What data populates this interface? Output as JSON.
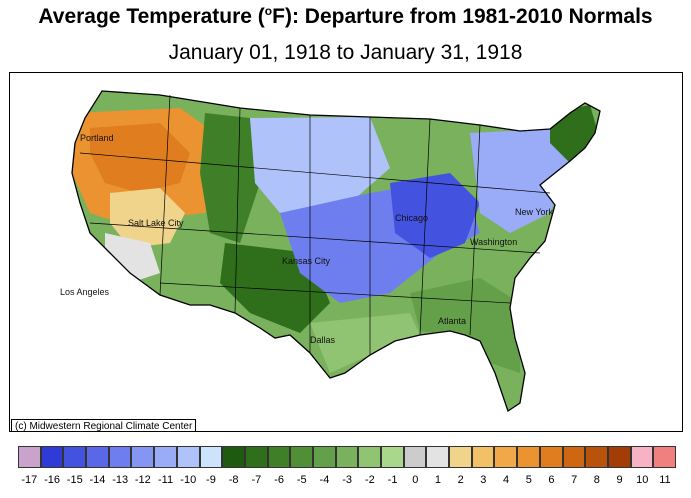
{
  "title_prefix": "Average Temperature (",
  "title_degree": "o",
  "title_suffix": "F): Departure from 1981-2010 Normals",
  "subtitle": "January 01, 1918 to January 31, 1918",
  "copyright": "(c) Midwestern Regional Climate Center",
  "cities": [
    {
      "name": "Portland"
    },
    {
      "name": "Salt Lake City"
    },
    {
      "name": "Los Angeles"
    },
    {
      "name": "Kansas City"
    },
    {
      "name": "Dallas"
    },
    {
      "name": "Chicago"
    },
    {
      "name": "Atlanta"
    },
    {
      "name": "Washington"
    },
    {
      "name": "New York"
    }
  ],
  "legend": {
    "labels": [
      "-17",
      "-16",
      "-15",
      "-14",
      "-13",
      "-12",
      "-11",
      "-10",
      "-9",
      "-8",
      "-7",
      "-6",
      "-5",
      "-4",
      "-3",
      "-2",
      "-1",
      "0",
      "1",
      "2",
      "3",
      "4",
      "5",
      "6",
      "7",
      "8",
      "9",
      "10",
      "11"
    ],
    "colors": [
      "#c9a3cc",
      "#2f3bd6",
      "#4452e0",
      "#5a68e8",
      "#6f7eef",
      "#8495f4",
      "#9aabf7",
      "#b0c2fa",
      "#cde3fb",
      "#1e5a0f",
      "#2f6e1a",
      "#3f7f27",
      "#518f37",
      "#64a049",
      "#79b15d",
      "#90c372",
      "#a9d78c",
      "#cccccc",
      "#e3e3e3",
      "#f0d48c",
      "#f2c066",
      "#f0a848",
      "#eb9330",
      "#e07e1f",
      "#cf6712",
      "#b9520a",
      "#a23d05",
      "#f7b3c4",
      "#f08080"
    ]
  }
}
